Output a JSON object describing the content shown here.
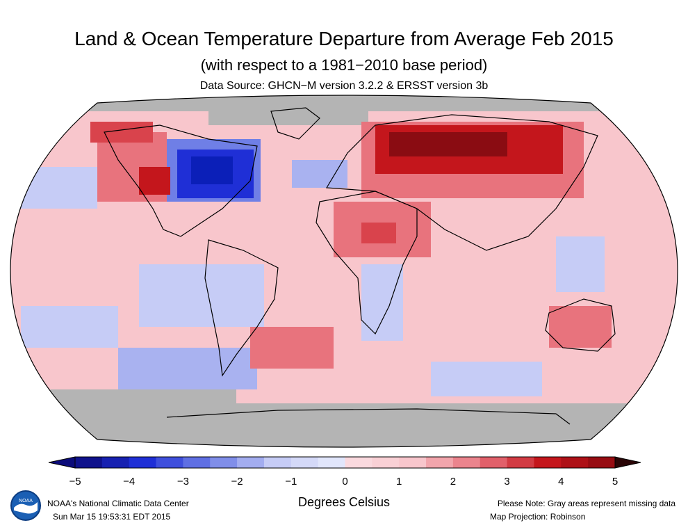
{
  "header": {
    "title": "Land & Ocean Temperature Departure from Average Feb 2015",
    "subtitle": "(with respect to a 1981−2010 base period)",
    "source": "Data Source: GHCN−M version 3.2.2 & ERSST version 3b"
  },
  "legend": {
    "ticks": [
      "−5",
      "−4",
      "−3",
      "−2",
      "−1",
      "0",
      "1",
      "2",
      "3",
      "4",
      "5"
    ],
    "label": "Degrees Celsius",
    "range": [
      -5,
      5
    ],
    "step": 0.5,
    "colors": {
      "cold_extreme": "#0b0b7a",
      "cold": "#1f2fd6",
      "cool": "#6f7fe6",
      "cool_light": "#c6ccf6",
      "warm_light": "#f8c6cc",
      "warm": "#e8737d",
      "hot": "#c4161c",
      "hot_extreme": "#2a0506",
      "missing": "#b4b4b4"
    }
  },
  "footer": {
    "credit_line1": "NOAA's National Climatic Data Center",
    "credit_line2": "Sun Mar 15 19:53:31 EDT 2015",
    "note_line1": "Please Note: Gray areas represent missing data",
    "note_line2": "Map Projection: Robinson",
    "logo_text": "NOAA"
  }
}
